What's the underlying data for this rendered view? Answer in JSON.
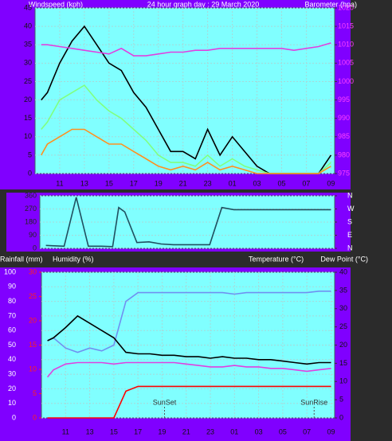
{
  "chart_data": [
    {
      "type": "line",
      "title": "24 hour graph day : 29 March 2020",
      "ylabel": "Windspeed (kph)",
      "y2label": "Barometer (hpa)",
      "x": [
        9.5,
        10,
        11,
        12,
        13,
        14,
        15,
        16,
        17,
        18,
        19,
        20,
        21,
        22,
        23,
        24,
        25,
        26,
        27,
        28,
        29,
        30,
        31,
        32,
        33
      ],
      "xlim": [
        9,
        33.3
      ],
      "xticks": [
        11,
        13,
        15,
        17,
        19,
        21,
        23,
        {
          "value": 25,
          "label": "01"
        },
        {
          "value": 27,
          "label": "03"
        },
        {
          "value": 29,
          "label": "05"
        },
        {
          "value": 31,
          "label": "07"
        },
        {
          "value": 33,
          "label": "09"
        }
      ],
      "ylim": [
        0,
        45
      ],
      "yticks": [
        0,
        5,
        10,
        15,
        20,
        25,
        30,
        35,
        40,
        45
      ],
      "y2lim": [
        975,
        1020
      ],
      "y2ticks": [
        975,
        980,
        985,
        990,
        995,
        1000,
        1005,
        1010,
        1015,
        1020
      ],
      "grid": true,
      "series": [
        {
          "color": "#000000",
          "values": [
            20,
            22,
            30,
            36,
            40,
            35,
            30,
            28,
            22,
            18,
            12,
            6,
            6,
            4,
            12,
            5,
            10,
            6,
            2,
            0,
            0,
            0,
            0,
            0,
            5
          ]
        },
        {
          "color": "#80ff80",
          "values": [
            12,
            14,
            20,
            22,
            24,
            20,
            17,
            15,
            12,
            9,
            5,
            3,
            3,
            2,
            5,
            2,
            4,
            2,
            1,
            0,
            0,
            0,
            0,
            0,
            3
          ]
        },
        {
          "color": "#ff9020",
          "values": [
            5,
            8,
            10,
            12,
            12,
            10,
            8,
            8,
            6,
            4,
            2,
            1,
            2,
            1,
            3,
            1,
            2,
            1,
            0,
            0,
            0,
            0,
            0,
            0,
            2
          ]
        },
        {
          "color": "#e040e0",
          "axis": "y2",
          "values": [
            1010,
            1010,
            1009.5,
            1009,
            1008.5,
            1008,
            1007.5,
            1009,
            1007,
            1007,
            1007.5,
            1008,
            1008,
            1008.5,
            1008.5,
            1009,
            1009,
            1009,
            1009,
            1009,
            1009,
            1008.5,
            1009,
            1009.5,
            1010.5
          ]
        }
      ]
    },
    {
      "type": "line",
      "x": [
        9.5,
        10,
        11,
        12,
        13,
        14,
        15,
        15.5,
        16,
        17,
        18,
        19,
        20,
        21,
        22,
        23,
        24,
        25,
        26,
        27,
        28,
        29,
        30,
        31,
        32,
        33
      ],
      "xlim": [
        9,
        33.3
      ],
      "ylim": [
        0,
        360
      ],
      "yticks": [
        0,
        90,
        180,
        270,
        360
      ],
      "y2lim": [
        0,
        360
      ],
      "y2ticks": [
        {
          "value": 360,
          "label": "N"
        },
        {
          "value": 270,
          "label": "W"
        },
        {
          "value": 180,
          "label": "S"
        },
        {
          "value": 90,
          "label": "E"
        },
        {
          "value": 0,
          "label": "N"
        }
      ],
      "grid": true,
      "series": [
        {
          "color": "#205060",
          "values": [
            20,
            18,
            15,
            350,
            15,
            15,
            12,
            280,
            250,
            40,
            45,
            30,
            25,
            25,
            25,
            25,
            280,
            265,
            265,
            265,
            265,
            265,
            265,
            265,
            265,
            265
          ]
        }
      ]
    },
    {
      "type": "line",
      "rain_label": "Rainfall (mm)",
      "ylabel": "Humidity (%)",
      "y2label": "Temperature (°C)",
      "y2label2": "Dew Point (°C)",
      "x": [
        9.5,
        10,
        11,
        12,
        13,
        14,
        15,
        16,
        17,
        18,
        19,
        20,
        21,
        22,
        23,
        24,
        25,
        26,
        27,
        28,
        29,
        30,
        31,
        32,
        33
      ],
      "xlim": [
        9,
        33.3
      ],
      "xticks": [
        11,
        13,
        15,
        17,
        19,
        21,
        23,
        {
          "value": 25,
          "label": "01"
        },
        {
          "value": 27,
          "label": "03"
        },
        {
          "value": 29,
          "label": "05"
        },
        {
          "value": 31,
          "label": "07"
        },
        {
          "value": 33,
          "label": "09"
        }
      ],
      "ylim": [
        0,
        100
      ],
      "yticks": [
        0,
        10,
        20,
        30,
        40,
        50,
        60,
        70,
        80,
        90,
        100
      ],
      "rain_ylim": [
        0,
        30
      ],
      "rain_yticks": [
        0,
        5,
        10,
        15,
        20,
        25,
        30
      ],
      "y2lim": [
        0,
        40
      ],
      "y2ticks": [
        0,
        5,
        10,
        15,
        20,
        25,
        30,
        35,
        40
      ],
      "grid": true,
      "annotations": [
        {
          "text": "SunSet",
          "x": 19.2
        },
        {
          "text": "SunRise",
          "x": 31.6
        }
      ],
      "series": [
        {
          "color": "#ff0000",
          "axis": "rain",
          "values": [
            0,
            0,
            0,
            0,
            0,
            0,
            0,
            5.5,
            6.5,
            6.5,
            6.5,
            6.5,
            6.5,
            6.5,
            6.5,
            6.5,
            6.5,
            6.5,
            6.5,
            6.5,
            6.5,
            6.5,
            6.5,
            6.5,
            6.5
          ]
        },
        {
          "color": "#7090f0",
          "values": [
            53,
            55,
            48,
            45,
            48,
            46,
            50,
            80,
            86,
            86,
            86,
            86,
            86,
            86,
            86,
            86,
            85,
            86,
            86,
            86,
            86,
            86,
            86,
            87,
            87
          ]
        },
        {
          "color": "#000000",
          "axis": "y2",
          "values": [
            21.2,
            22,
            24.8,
            28,
            26,
            24,
            22,
            18,
            17.6,
            17.6,
            17.2,
            17.2,
            16.8,
            16.8,
            16.4,
            16.8,
            16.4,
            16.4,
            16,
            16,
            15.6,
            15.2,
            14.8,
            15.2,
            15.2
          ]
        },
        {
          "color": "#e040e0",
          "axis": "y2",
          "values": [
            11.2,
            13.2,
            14.8,
            15.2,
            15.2,
            15.2,
            14.8,
            15.2,
            15.2,
            15.2,
            15.2,
            15.2,
            14.8,
            14.4,
            14,
            14,
            14.4,
            14,
            14,
            13.6,
            13.6,
            13.2,
            12.8,
            13.2,
            13.6
          ]
        }
      ]
    }
  ]
}
